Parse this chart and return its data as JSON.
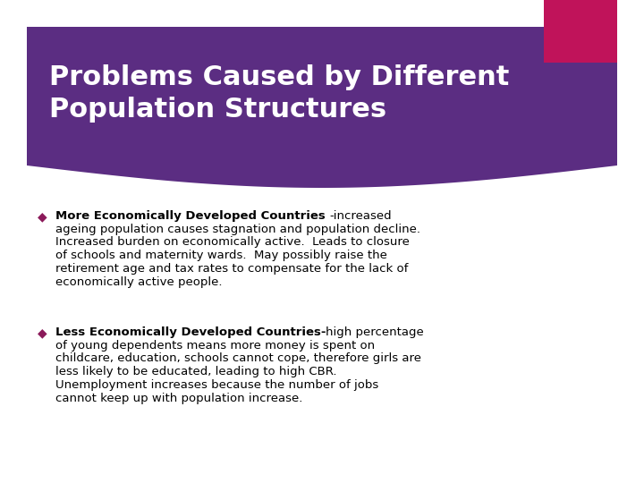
{
  "title_line1": "Problems Caused by Different",
  "title_line2": "Population Structures",
  "title_color": "#ffffff",
  "header_bg_color": "#5b2d82",
  "header_accent_color": "#c0135a",
  "bg_color": "#ffffff",
  "bullet_color": "#8b1a5a",
  "bullet1_bold": "More Economically Developed Countries ",
  "bullet1_rest": "-increased\nageing population causes stagnation and population decline.\nIncreased burden on economically active.  Leads to closure\nof schools and maternity wards.  May possibly raise the\nretirement age and tax rates to compensate for the lack of\neconomically active people.",
  "bullet2_bold": "Less Economically Developed Countries-",
  "bullet2_rest": "high percentage\nof young dependents means more money is spent on\nchildcare, education, schools cannot cope, therefore girls are\nless likely to be educated, leading to high CBR.\nUnemployment increases because the number of jobs\ncannot keep up with population increase.",
  "body_fontsize": 9.5,
  "title_fontsize": 22
}
